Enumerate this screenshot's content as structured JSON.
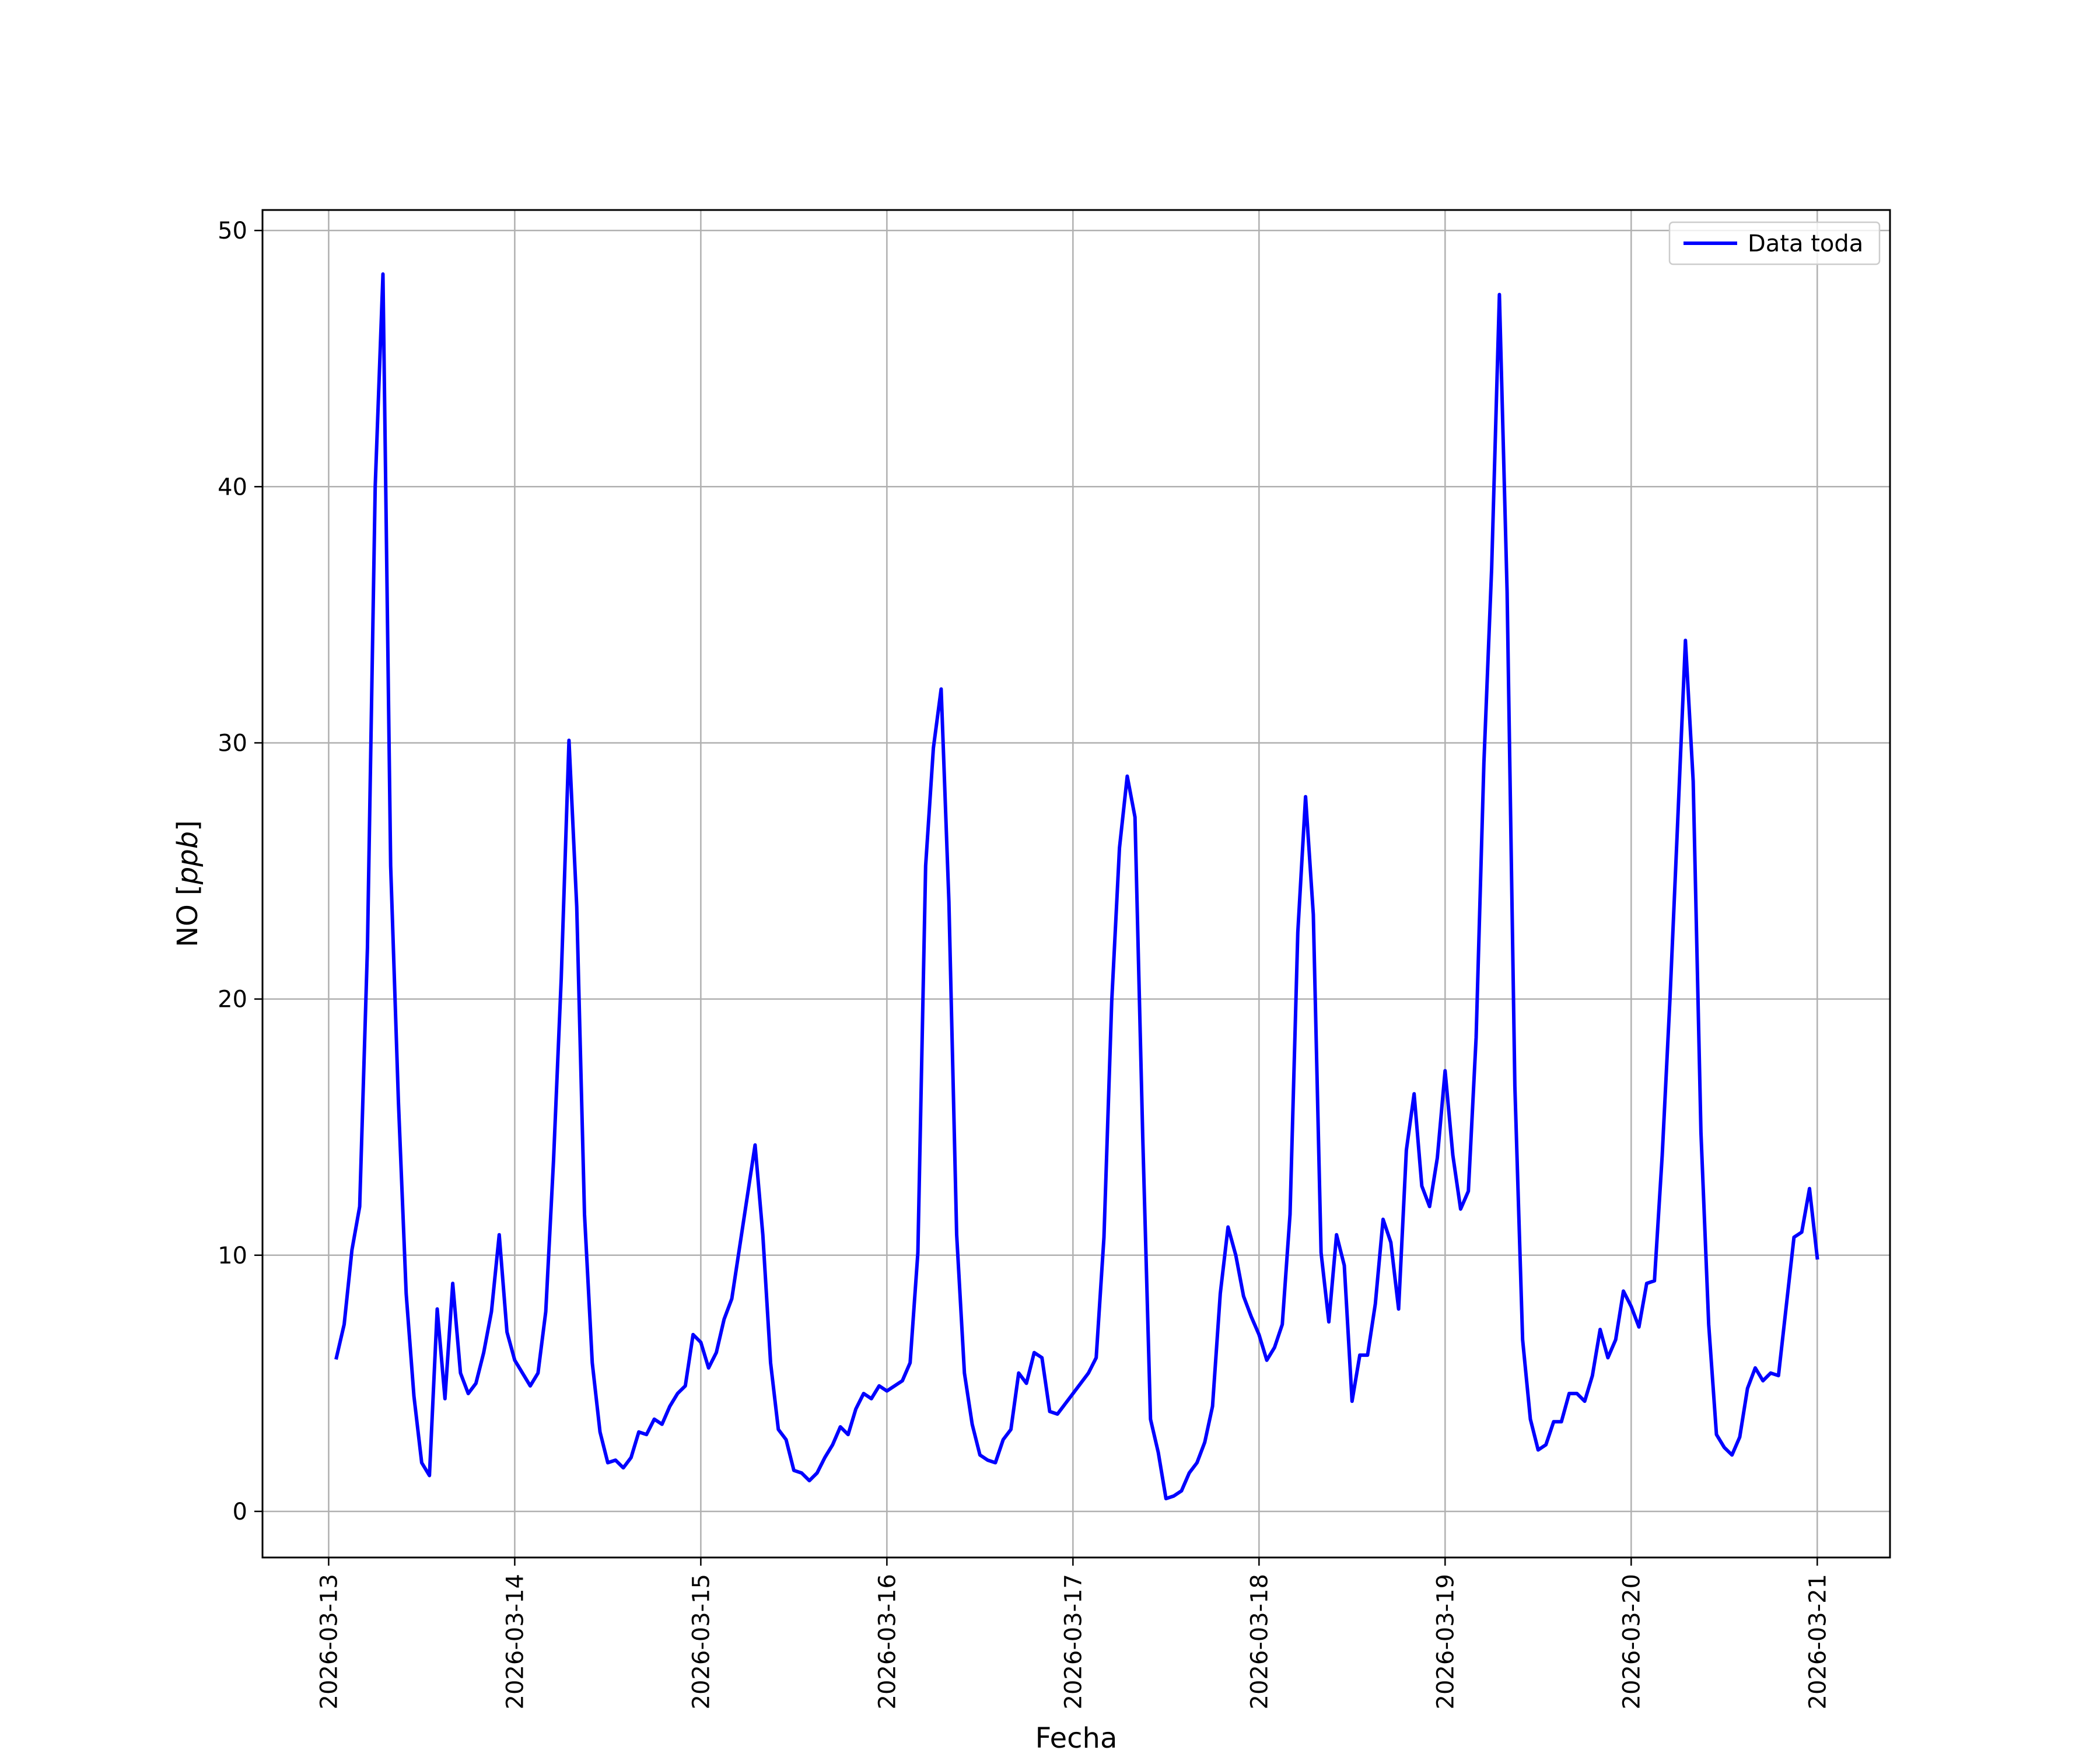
{
  "chart_data": {
    "type": "line",
    "xlabel": "Fecha",
    "ylabel_prefix": "NO [",
    "ylabel_unit": "ppb",
    "ylabel_suffix": "]",
    "xlim": [
      "2026-03-12 15:28",
      "2026-03-21 09:23"
    ],
    "ylim": [
      -1.8,
      50.8
    ],
    "xticks": [
      "2026-03-13",
      "2026-03-14",
      "2026-03-15",
      "2026-03-16",
      "2026-03-17",
      "2026-03-18",
      "2026-03-19",
      "2026-03-20",
      "2026-03-21"
    ],
    "yticks": [
      0,
      10,
      20,
      30,
      40,
      50
    ],
    "grid": true,
    "legend_position": "top-right",
    "colors": {
      "series": "#0000ff",
      "grid": "#b0b0b0",
      "axes": "#000000"
    },
    "series": [
      {
        "name": "Data toda",
        "x": [
          "2026-03-13 01:00",
          "2026-03-13 02:00",
          "2026-03-13 03:00",
          "2026-03-13 04:00",
          "2026-03-13 05:00",
          "2026-03-13 06:00",
          "2026-03-13 07:00",
          "2026-03-13 08:00",
          "2026-03-13 09:00",
          "2026-03-13 10:00",
          "2026-03-13 11:00",
          "2026-03-13 12:00",
          "2026-03-13 13:00",
          "2026-03-13 14:00",
          "2026-03-13 15:00",
          "2026-03-13 16:00",
          "2026-03-13 17:00",
          "2026-03-13 18:00",
          "2026-03-13 19:00",
          "2026-03-13 20:00",
          "2026-03-13 21:00",
          "2026-03-13 22:00",
          "2026-03-13 23:00",
          "2026-03-14 00:00",
          "2026-03-14 01:00",
          "2026-03-14 02:00",
          "2026-03-14 03:00",
          "2026-03-14 04:00",
          "2026-03-14 05:00",
          "2026-03-14 06:00",
          "2026-03-14 07:00",
          "2026-03-14 08:00",
          "2026-03-14 09:00",
          "2026-03-14 10:00",
          "2026-03-14 11:00",
          "2026-03-14 12:00",
          "2026-03-14 13:00",
          "2026-03-14 14:00",
          "2026-03-14 15:00",
          "2026-03-14 16:00",
          "2026-03-14 17:00",
          "2026-03-14 18:00",
          "2026-03-14 19:00",
          "2026-03-14 20:00",
          "2026-03-14 21:00",
          "2026-03-14 22:00",
          "2026-03-14 23:00",
          "2026-03-15 00:00",
          "2026-03-15 01:00",
          "2026-03-15 02:00",
          "2026-03-15 03:00",
          "2026-03-15 04:00",
          "2026-03-15 05:00",
          "2026-03-15 06:00",
          "2026-03-15 07:00",
          "2026-03-15 08:00",
          "2026-03-15 09:00",
          "2026-03-15 10:00",
          "2026-03-15 11:00",
          "2026-03-15 12:00",
          "2026-03-15 13:00",
          "2026-03-15 14:00",
          "2026-03-15 15:00",
          "2026-03-15 16:00",
          "2026-03-15 17:00",
          "2026-03-15 18:00",
          "2026-03-15 19:00",
          "2026-03-15 20:00",
          "2026-03-15 21:00",
          "2026-03-15 22:00",
          "2026-03-15 23:00",
          "2026-03-16 00:00",
          "2026-03-16 01:00",
          "2026-03-16 02:00",
          "2026-03-16 03:00",
          "2026-03-16 04:00",
          "2026-03-16 05:00",
          "2026-03-16 06:00",
          "2026-03-16 07:00",
          "2026-03-16 08:00",
          "2026-03-16 09:00",
          "2026-03-16 10:00",
          "2026-03-16 11:00",
          "2026-03-16 12:00",
          "2026-03-16 13:00",
          "2026-03-16 14:00",
          "2026-03-16 15:00",
          "2026-03-16 16:00",
          "2026-03-16 17:00",
          "2026-03-16 18:00",
          "2026-03-16 19:00",
          "2026-03-16 20:00",
          "2026-03-16 21:00",
          "2026-03-16 22:00",
          "2026-03-16 23:00",
          "2026-03-17 00:00",
          "2026-03-17 01:00",
          "2026-03-17 02:00",
          "2026-03-17 03:00",
          "2026-03-17 04:00",
          "2026-03-17 05:00",
          "2026-03-17 06:00",
          "2026-03-17 07:00",
          "2026-03-17 08:00",
          "2026-03-17 09:00",
          "2026-03-17 10:00",
          "2026-03-17 11:00",
          "2026-03-17 12:00",
          "2026-03-17 13:00",
          "2026-03-17 14:00",
          "2026-03-17 15:00",
          "2026-03-17 16:00",
          "2026-03-17 17:00",
          "2026-03-17 18:00",
          "2026-03-17 19:00",
          "2026-03-17 20:00",
          "2026-03-17 21:00",
          "2026-03-17 22:00",
          "2026-03-17 23:00",
          "2026-03-18 00:00",
          "2026-03-18 01:00",
          "2026-03-18 02:00",
          "2026-03-18 03:00",
          "2026-03-18 04:00",
          "2026-03-18 05:00",
          "2026-03-18 06:00",
          "2026-03-18 07:00",
          "2026-03-18 08:00",
          "2026-03-18 09:00",
          "2026-03-18 10:00",
          "2026-03-18 11:00",
          "2026-03-18 12:00",
          "2026-03-18 13:00",
          "2026-03-18 14:00",
          "2026-03-18 15:00",
          "2026-03-18 16:00",
          "2026-03-18 17:00",
          "2026-03-18 18:00",
          "2026-03-18 19:00",
          "2026-03-18 20:00",
          "2026-03-18 21:00",
          "2026-03-18 22:00",
          "2026-03-18 23:00",
          "2026-03-19 00:00",
          "2026-03-19 01:00",
          "2026-03-19 02:00",
          "2026-03-19 03:00",
          "2026-03-19 04:00",
          "2026-03-19 05:00",
          "2026-03-19 06:00",
          "2026-03-19 07:00",
          "2026-03-19 08:00",
          "2026-03-19 09:00",
          "2026-03-19 10:00",
          "2026-03-19 11:00",
          "2026-03-19 12:00",
          "2026-03-19 13:00",
          "2026-03-19 14:00",
          "2026-03-19 15:00",
          "2026-03-19 16:00",
          "2026-03-19 17:00",
          "2026-03-19 18:00",
          "2026-03-19 19:00",
          "2026-03-19 20:00",
          "2026-03-19 21:00",
          "2026-03-19 22:00",
          "2026-03-19 23:00",
          "2026-03-20 00:00",
          "2026-03-20 01:00",
          "2026-03-20 02:00",
          "2026-03-20 03:00",
          "2026-03-20 04:00",
          "2026-03-20 05:00",
          "2026-03-20 06:00",
          "2026-03-20 07:00",
          "2026-03-20 08:00",
          "2026-03-20 09:00",
          "2026-03-20 10:00",
          "2026-03-20 11:00",
          "2026-03-20 12:00",
          "2026-03-20 13:00",
          "2026-03-20 14:00",
          "2026-03-20 15:00",
          "2026-03-20 16:00",
          "2026-03-20 17:00",
          "2026-03-20 18:00",
          "2026-03-20 19:00",
          "2026-03-20 20:00",
          "2026-03-20 21:00",
          "2026-03-20 22:00",
          "2026-03-20 23:00",
          "2026-03-21 00:00"
        ],
        "y": [
          6.0,
          7.3,
          10.2,
          11.9,
          22.0,
          40.0,
          48.3,
          25.2,
          16.0,
          8.5,
          4.5,
          1.9,
          1.4,
          7.9,
          4.4,
          8.9,
          5.4,
          4.6,
          5.0,
          6.2,
          7.8,
          10.8,
          7.0,
          5.9,
          5.4,
          4.9,
          5.4,
          7.8,
          13.7,
          20.8,
          30.1,
          23.6,
          11.6,
          5.8,
          3.1,
          1.9,
          2.0,
          1.7,
          2.1,
          3.1,
          3.0,
          3.6,
          3.4,
          4.1,
          4.6,
          4.9,
          6.9,
          6.6,
          5.6,
          6.2,
          7.5,
          8.3,
          10.3,
          12.3,
          14.3,
          10.8,
          5.8,
          3.2,
          2.8,
          1.6,
          1.5,
          1.2,
          1.5,
          2.1,
          2.6,
          3.3,
          3.0,
          4.0,
          4.6,
          4.4,
          4.9,
          4.7,
          4.9,
          5.1,
          5.8,
          10.1,
          25.2,
          29.8,
          32.1,
          23.8,
          10.8,
          5.4,
          3.4,
          2.2,
          2.0,
          1.9,
          2.8,
          3.2,
          5.4,
          5.0,
          6.2,
          6.0,
          3.9,
          3.8,
          4.2,
          4.6,
          5.0,
          5.4,
          6.0,
          10.7,
          19.9,
          25.9,
          28.7,
          27.1,
          14.6,
          3.6,
          2.3,
          0.5,
          0.6,
          0.8,
          1.5,
          1.9,
          2.7,
          4.1,
          8.5,
          11.1,
          10.0,
          8.4,
          7.6,
          6.9,
          5.9,
          6.4,
          7.3,
          11.6,
          22.6,
          27.9,
          23.3,
          10.1,
          7.4,
          10.8,
          9.6,
          4.3,
          6.1,
          6.1,
          8.1,
          11.4,
          10.5,
          7.9,
          14.1,
          16.3,
          12.7,
          11.9,
          13.8,
          17.2,
          13.9,
          11.8,
          12.5,
          18.5,
          29.2,
          36.8,
          47.5,
          35.9,
          16.6,
          6.7,
          3.6,
          2.4,
          2.6,
          3.5,
          3.5,
          4.6,
          4.6,
          4.3,
          5.3,
          7.1,
          6.0,
          6.7,
          8.6,
          8.0,
          7.2,
          8.9,
          9.0,
          13.9,
          20.0,
          26.9,
          34.0,
          28.5,
          14.8,
          7.3,
          3.0,
          2.5,
          2.2,
          2.9,
          4.8,
          5.6,
          5.1,
          5.4,
          5.3,
          8.0,
          10.7,
          10.9,
          12.6,
          9.9
        ]
      }
    ]
  }
}
